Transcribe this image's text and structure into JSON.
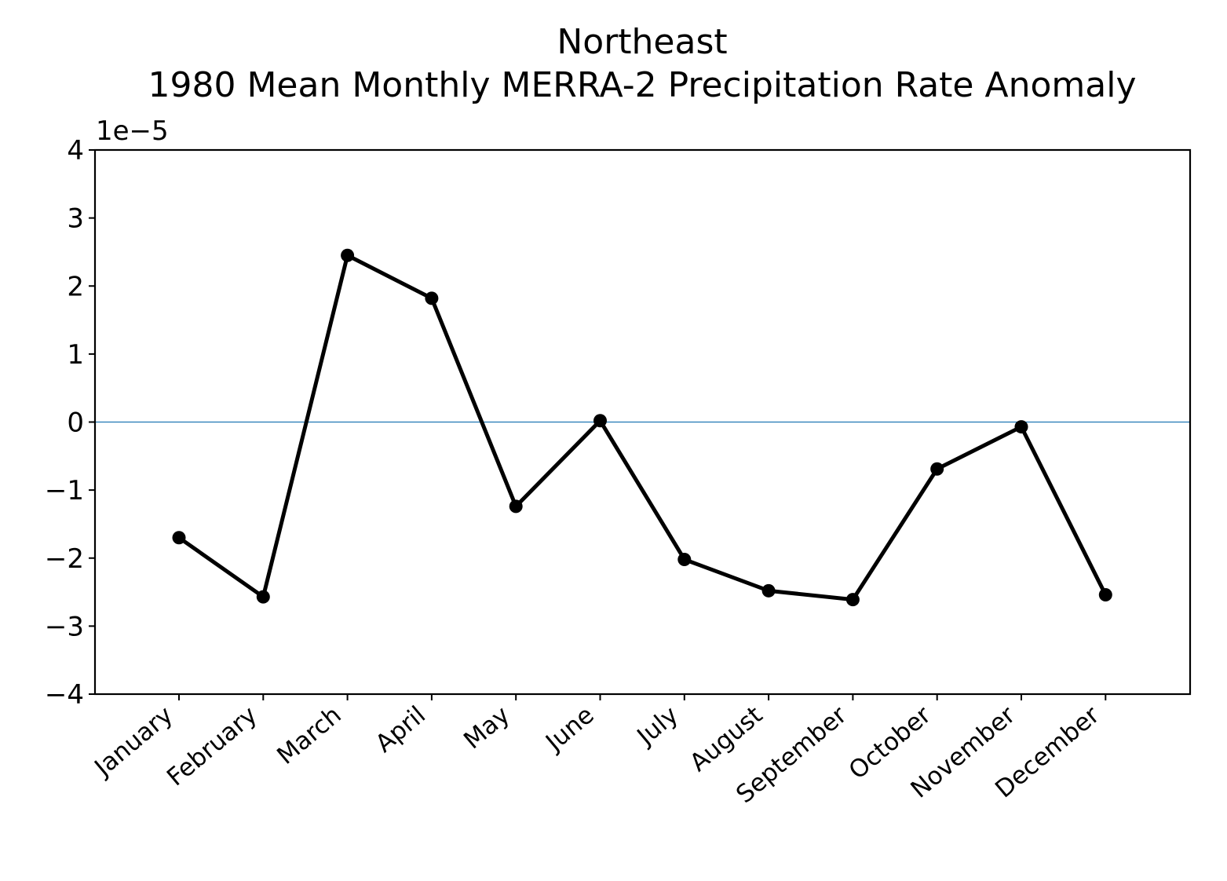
{
  "chart_data": {
    "type": "line",
    "title": "Northeast",
    "subtitle": "1980 Mean Monthly MERRA-2 Precipitation Rate Anomaly",
    "xlabel": "",
    "ylabel": "",
    "y_offset_label": "1e−5",
    "categories": [
      "January",
      "February",
      "March",
      "April",
      "May",
      "June",
      "July",
      "August",
      "September",
      "October",
      "November",
      "December"
    ],
    "series": [
      {
        "values": [
          -1.7e-05,
          -2.57e-05,
          2.45e-05,
          1.82e-05,
          -1.24e-05,
          2e-07,
          -2.02e-05,
          -2.48e-05,
          -2.61e-05,
          -6.9e-06,
          -7e-07,
          -2.54e-05
        ]
      }
    ],
    "ylim": [
      -4e-05,
      4e-05
    ],
    "yticks": [
      -4,
      -3,
      -2,
      -1,
      0,
      1,
      2,
      3,
      4
    ],
    "ytick_labels": [
      "−4",
      "−3",
      "−2",
      "−1",
      "0",
      "1",
      "2",
      "3",
      "4"
    ],
    "reference_line": 0,
    "grid": false,
    "colors": {
      "line": "#000000",
      "reference": "#1f77b4"
    }
  }
}
